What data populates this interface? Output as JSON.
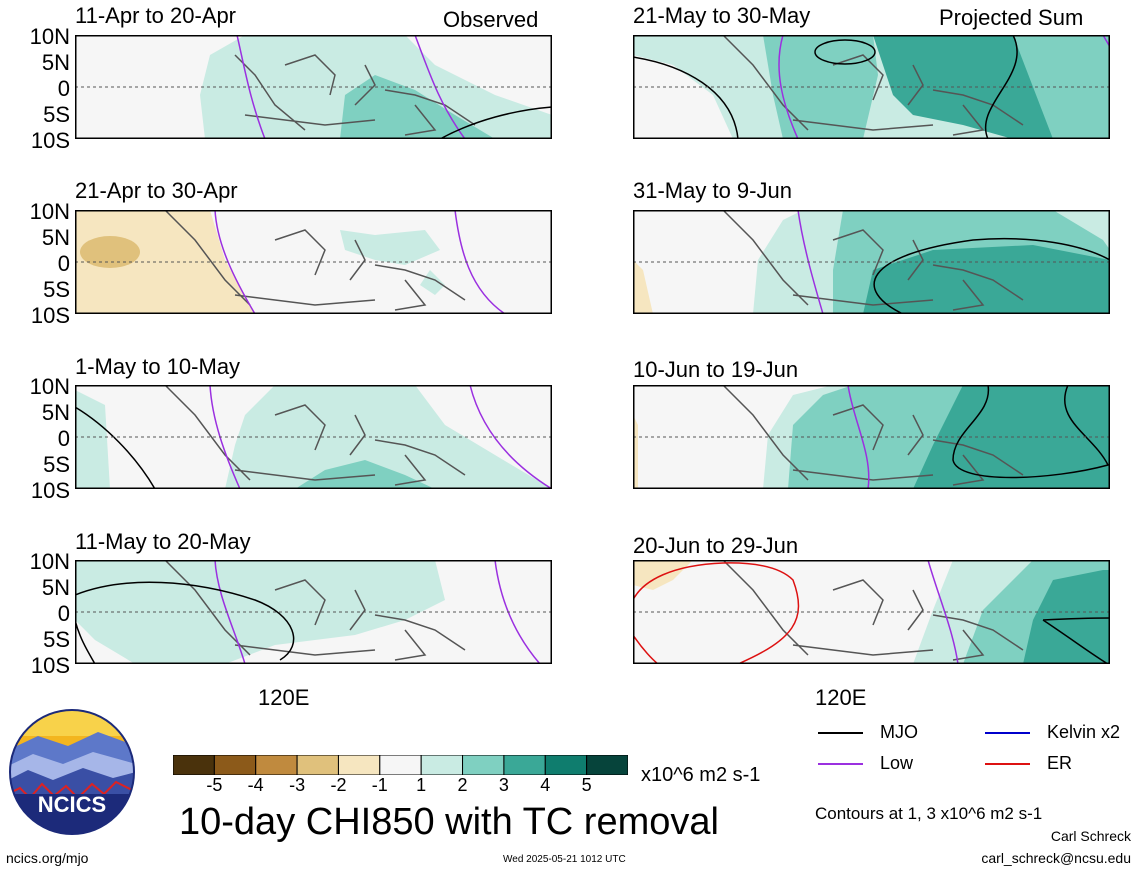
{
  "header": {
    "left_label": "Observed",
    "right_label": "Projected Sum"
  },
  "y_axis_labels": [
    "10N",
    "5N",
    "0",
    "5S",
    "10S"
  ],
  "x_axis_label": "120E",
  "panels": [
    {
      "id": "p1",
      "title": "11-Apr to 20-Apr"
    },
    {
      "id": "p2",
      "title": "21-Apr to 30-Apr"
    },
    {
      "id": "p3",
      "title": "1-May to 10-May"
    },
    {
      "id": "p4",
      "title": "11-May to 20-May"
    },
    {
      "id": "p5",
      "title": "21-May to 30-May"
    },
    {
      "id": "p6",
      "title": "31-May to 9-Jun"
    },
    {
      "id": "p7",
      "title": "10-Jun to 19-Jun"
    },
    {
      "id": "p8",
      "title": "20-Jun to 29-Jun"
    }
  ],
  "colorbar": {
    "labels": [
      "-5",
      "-4",
      "-3",
      "-2",
      "-1",
      "1",
      "2",
      "3",
      "4",
      "5"
    ],
    "colors": [
      "#4a320c",
      "#8c5a1a",
      "#c08a3e",
      "#e0c17c",
      "#f6e6c0",
      "#f6f6f6",
      "#c9ebe3",
      "#7fd0c1",
      "#3aa897",
      "#0f7d6e",
      "#06443b"
    ],
    "units": "x10^6 m2 s-1"
  },
  "main_title": "10-day CHI850 with TC removal",
  "legend": {
    "items": [
      {
        "label": "MJO",
        "color": "#000000"
      },
      {
        "label": "Kelvin x2",
        "color": "#0000cc"
      },
      {
        "label": "Low",
        "color": "#9b30e0"
      },
      {
        "label": "ER",
        "color": "#dd1111"
      }
    ],
    "contours_note": "Contours at 1, 3 x10^6 m2 s-1"
  },
  "logo": {
    "text": "NCICS"
  },
  "footer": {
    "url": "ncics.org/mjo",
    "timestamp": "Wed 2025-05-21 1012 UTC",
    "author": "Carl Schreck",
    "email": "carl_schreck@ncsu.edu"
  }
}
